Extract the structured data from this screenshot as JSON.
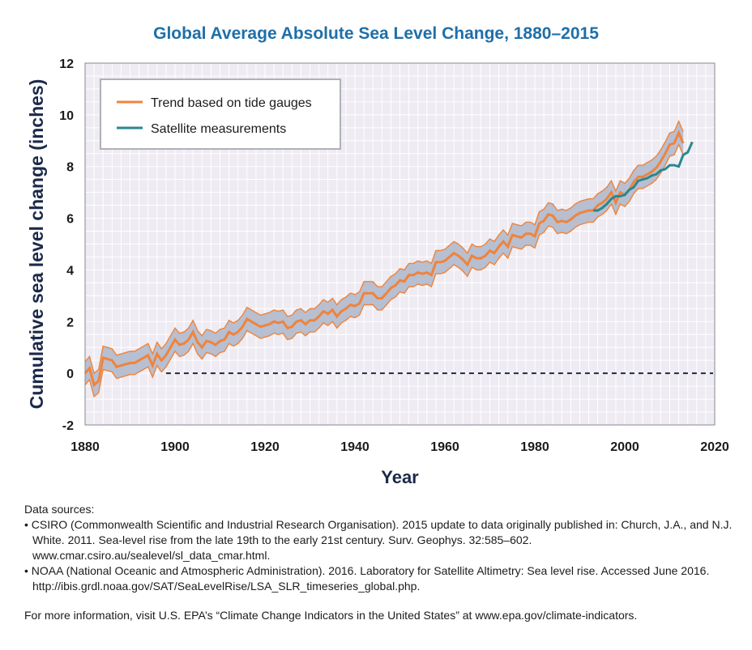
{
  "chart_data": {
    "type": "line",
    "title": "Global Average Absolute Sea Level Change, 1880–2015",
    "xlabel": "Year",
    "ylabel": "Cumulative sea level change (inches)",
    "xlim": [
      1880,
      2020
    ],
    "ylim": [
      -2,
      12
    ],
    "xticks": [
      1880,
      1900,
      1920,
      1940,
      1960,
      1980,
      2000,
      2020
    ],
    "yticks": [
      -2,
      0,
      2,
      4,
      6,
      8,
      10,
      12
    ],
    "legend_position": "top-left",
    "series": [
      {
        "name": "Trend based on tide gauges",
        "color": "#f0833a",
        "band_color": "#b7bfd1",
        "uncertainty": 0.45,
        "x": [
          1880,
          1881,
          1882,
          1883,
          1884,
          1885,
          1886,
          1887,
          1888,
          1889,
          1890,
          1891,
          1892,
          1893,
          1894,
          1895,
          1896,
          1897,
          1898,
          1899,
          1900,
          1901,
          1902,
          1903,
          1904,
          1905,
          1906,
          1907,
          1908,
          1909,
          1910,
          1911,
          1912,
          1913,
          1914,
          1915,
          1916,
          1917,
          1918,
          1919,
          1920,
          1921,
          1922,
          1923,
          1924,
          1925,
          1926,
          1927,
          1928,
          1929,
          1930,
          1931,
          1932,
          1933,
          1934,
          1935,
          1936,
          1937,
          1938,
          1939,
          1940,
          1941,
          1942,
          1943,
          1944,
          1945,
          1946,
          1947,
          1948,
          1949,
          1950,
          1951,
          1952,
          1953,
          1954,
          1955,
          1956,
          1957,
          1958,
          1959,
          1960,
          1961,
          1962,
          1963,
          1964,
          1965,
          1966,
          1967,
          1968,
          1969,
          1970,
          1971,
          1972,
          1973,
          1974,
          1975,
          1976,
          1977,
          1978,
          1979,
          1980,
          1981,
          1982,
          1983,
          1984,
          1985,
          1986,
          1987,
          1988,
          1989,
          1990,
          1991,
          1992,
          1993,
          1994,
          1995,
          1996,
          1997,
          1998,
          1999,
          2000,
          2001,
          2002,
          2003,
          2004,
          2005,
          2006,
          2007,
          2008,
          2009,
          2010,
          2011,
          2012,
          2013
        ],
        "values": [
          0.0,
          0.2,
          -0.45,
          -0.3,
          0.6,
          0.55,
          0.5,
          0.25,
          0.3,
          0.35,
          0.4,
          0.4,
          0.5,
          0.6,
          0.7,
          0.3,
          0.75,
          0.5,
          0.7,
          1.0,
          1.3,
          1.1,
          1.15,
          1.3,
          1.6,
          1.2,
          1.0,
          1.25,
          1.2,
          1.1,
          1.25,
          1.3,
          1.6,
          1.5,
          1.6,
          1.8,
          2.1,
          2.0,
          1.9,
          1.8,
          1.85,
          1.9,
          2.0,
          1.95,
          2.0,
          1.75,
          1.8,
          2.0,
          2.05,
          1.9,
          2.05,
          2.05,
          2.2,
          2.4,
          2.3,
          2.45,
          2.2,
          2.4,
          2.5,
          2.65,
          2.6,
          2.7,
          3.1,
          3.1,
          3.1,
          2.9,
          2.9,
          3.1,
          3.3,
          3.4,
          3.6,
          3.55,
          3.8,
          3.8,
          3.9,
          3.85,
          3.9,
          3.8,
          4.3,
          4.3,
          4.35,
          4.5,
          4.65,
          4.55,
          4.4,
          4.2,
          4.55,
          4.45,
          4.45,
          4.55,
          4.75,
          4.65,
          4.9,
          5.1,
          4.9,
          5.35,
          5.3,
          5.25,
          5.4,
          5.4,
          5.3,
          5.8,
          5.9,
          6.15,
          6.1,
          5.85,
          5.9,
          5.85,
          5.95,
          6.1,
          6.2,
          6.25,
          6.3,
          6.3,
          6.5,
          6.6,
          6.75,
          7.0,
          6.6,
          7.0,
          6.9,
          7.1,
          7.4,
          7.6,
          7.6,
          7.7,
          7.8,
          7.95,
          8.2,
          8.5,
          8.85,
          8.9,
          9.3,
          8.9
        ]
      },
      {
        "name": "Satellite measurements",
        "color": "#2a8790",
        "x": [
          1993,
          1994,
          1995,
          1996,
          1997,
          1998,
          1999,
          2000,
          2001,
          2002,
          2003,
          2004,
          2005,
          2006,
          2007,
          2008,
          2009,
          2010,
          2011,
          2012,
          2013,
          2014,
          2015
        ],
        "values": [
          6.3,
          6.3,
          6.4,
          6.55,
          6.75,
          6.85,
          6.85,
          6.9,
          7.1,
          7.2,
          7.45,
          7.5,
          7.55,
          7.65,
          7.7,
          7.85,
          7.9,
          8.05,
          8.05,
          8.0,
          8.45,
          8.55,
          8.95
        ]
      }
    ]
  },
  "sources": {
    "heading": "Data sources:",
    "items": [
      "• CSIRO (Commonwealth Scientific and Industrial Research Organisation). 2015 update to data originally published in: Church, J.A., and N.J. White. 2011. Sea-level rise from the late 19th to the early 21st century. Surv. Geophys. 32:585–602. www.cmar.csiro.au/sealevel/sl_data_cmar.html.",
      "• NOAA (National Oceanic and Atmospheric Administration). 2016. Laboratory for Satellite Altimetry: Sea level rise. Accessed June 2016. http://ibis.grdl.noaa.gov/SAT/SeaLevelRise/LSA_SLR_timeseries_global.php."
    ],
    "more_info": "For more information, visit U.S. EPA’s “Climate Change Indicators in the United States” at www.epa.gov/climate-indicators."
  }
}
